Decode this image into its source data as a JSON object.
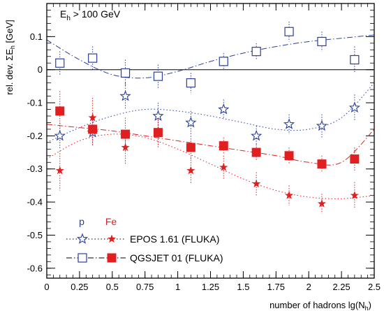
{
  "chart_data": {
    "type": "scatter",
    "annotation": "E_h > 100 GeV",
    "ylabel": "rel. dev. ΣE_h [GeV]",
    "xlabel": "number of hadrons lg(N_h)",
    "xlim": [
      0,
      2.5
    ],
    "ylim": [
      -0.63,
      0.2
    ],
    "x_ticks": [
      0,
      0.25,
      0.5,
      0.75,
      1,
      1.25,
      1.5,
      1.75,
      2,
      2.25,
      2.5
    ],
    "x_tick_labels": [
      "0",
      "0.25",
      "0.5",
      "0.75",
      "1",
      "1.25",
      "1.5",
      "1.75",
      "2",
      "2.25",
      "2.5"
    ],
    "y_ticks": [
      0.1,
      0,
      -0.1,
      -0.2,
      -0.3,
      -0.4,
      -0.5,
      -0.6
    ],
    "y_tick_labels": [
      "0.1",
      "0",
      "-0.1",
      "-0.2",
      "-0.3",
      "-0.4",
      "-0.5",
      "-0.6"
    ],
    "zero_line": true,
    "legend": {
      "placement": "bottom-left",
      "headers": [
        {
          "text": "p",
          "color": "#2a3f9c"
        },
        {
          "text": "Fe",
          "color": "#e02020"
        }
      ],
      "entries": [
        {
          "text": "EPOS 1.61 (FLUKA)",
          "marker": "star",
          "line": "dotted"
        },
        {
          "text": "QGSJET 01 (FLUKA)",
          "marker": "square",
          "line": "dashdot"
        }
      ]
    },
    "series": [
      {
        "primary": "p",
        "model": "QGSJET 01 (FLUKA)",
        "color": "#2a3f9c",
        "marker": "open-square",
        "line": "dashdot",
        "x": [
          0.1,
          0.35,
          0.6,
          0.85,
          1.1,
          1.35,
          1.6,
          1.85,
          2.1,
          2.35
        ],
        "y": [
          0.02,
          0.035,
          -0.01,
          -0.02,
          -0.04,
          0.025,
          0.055,
          0.115,
          0.085,
          0.03
        ],
        "err": [
          0.035,
          0.035,
          0.04,
          0.035,
          0.03,
          0.025,
          0.025,
          0.03,
          0.03,
          0.04
        ],
        "fit": [
          [
            0.0,
            0.09
          ],
          [
            0.25,
            0.03
          ],
          [
            0.5,
            -0.015
          ],
          [
            0.75,
            -0.025
          ],
          [
            1.0,
            -0.005
          ],
          [
            1.25,
            0.025
          ],
          [
            1.5,
            0.05
          ],
          [
            1.75,
            0.07
          ],
          [
            2.0,
            0.085
          ],
          [
            2.25,
            0.095
          ],
          [
            2.5,
            0.105
          ]
        ]
      },
      {
        "primary": "p",
        "model": "EPOS 1.61 (FLUKA)",
        "color": "#2a3f9c",
        "marker": "open-star",
        "line": "dotted",
        "x": [
          0.1,
          0.35,
          0.6,
          0.85,
          1.1,
          1.35,
          1.6,
          1.85,
          2.1,
          2.35
        ],
        "y": [
          -0.2,
          -0.19,
          -0.08,
          -0.14,
          -0.16,
          -0.12,
          -0.2,
          -0.165,
          -0.17,
          -0.115
        ],
        "err": [
          0.04,
          0.04,
          0.04,
          0.04,
          0.035,
          0.03,
          0.03,
          0.03,
          0.035,
          0.04
        ],
        "fit": [
          [
            0.0,
            -0.22
          ],
          [
            0.25,
            -0.175
          ],
          [
            0.5,
            -0.14
          ],
          [
            0.75,
            -0.12
          ],
          [
            1.0,
            -0.125
          ],
          [
            1.25,
            -0.14
          ],
          [
            1.5,
            -0.16
          ],
          [
            1.75,
            -0.18
          ],
          [
            2.0,
            -0.18
          ],
          [
            2.25,
            -0.145
          ],
          [
            2.5,
            -0.04
          ]
        ]
      },
      {
        "primary": "Fe",
        "model": "QGSJET 01 (FLUKA)",
        "color": "#e02020",
        "marker": "filled-square",
        "line": "dashdot",
        "x": [
          0.1,
          0.35,
          0.6,
          0.85,
          1.1,
          1.35,
          1.6,
          1.85,
          2.1,
          2.35
        ],
        "y": [
          -0.125,
          -0.18,
          -0.195,
          -0.19,
          -0.235,
          -0.23,
          -0.25,
          -0.26,
          -0.285,
          -0.27
        ],
        "err": [
          0.06,
          0.05,
          0.05,
          0.04,
          0.035,
          0.025,
          0.025,
          0.025,
          0.025,
          0.035
        ],
        "fit": [
          [
            0.0,
            -0.165
          ],
          [
            0.25,
            -0.175
          ],
          [
            0.5,
            -0.185
          ],
          [
            0.75,
            -0.2
          ],
          [
            1.0,
            -0.215
          ],
          [
            1.25,
            -0.23
          ],
          [
            1.5,
            -0.245
          ],
          [
            1.75,
            -0.26
          ],
          [
            2.0,
            -0.28
          ],
          [
            2.25,
            -0.28
          ],
          [
            2.5,
            -0.18
          ]
        ]
      },
      {
        "primary": "Fe",
        "model": "EPOS 1.61 (FLUKA)",
        "color": "#e02020",
        "marker": "filled-star",
        "line": "dotted",
        "x": [
          0.1,
          0.35,
          0.6,
          0.85,
          1.1,
          1.35,
          1.6,
          1.85,
          2.1,
          2.35
        ],
        "y": [
          -0.305,
          -0.145,
          -0.235,
          -0.185,
          -0.305,
          -0.295,
          -0.345,
          -0.38,
          -0.405,
          -0.38
        ],
        "err": [
          0.06,
          0.06,
          0.05,
          0.05,
          0.04,
          0.035,
          0.035,
          0.03,
          0.03,
          0.04
        ],
        "fit": [
          [
            0.0,
            -0.27
          ],
          [
            0.25,
            -0.215
          ],
          [
            0.5,
            -0.195
          ],
          [
            0.75,
            -0.205
          ],
          [
            1.0,
            -0.24
          ],
          [
            1.25,
            -0.285
          ],
          [
            1.5,
            -0.33
          ],
          [
            1.75,
            -0.365
          ],
          [
            2.0,
            -0.385
          ],
          [
            2.25,
            -0.39
          ],
          [
            2.5,
            -0.38
          ]
        ]
      }
    ]
  }
}
